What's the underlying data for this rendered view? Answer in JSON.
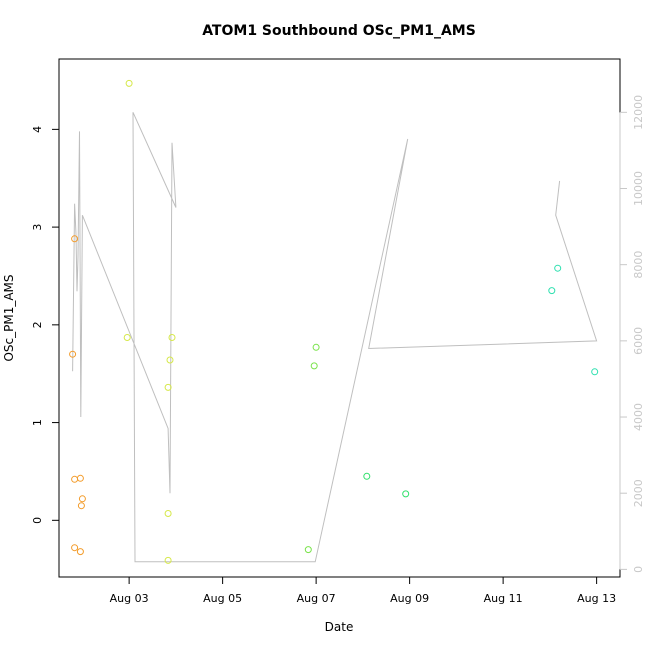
{
  "chart_data": {
    "type": "scatter",
    "title": "ATOM1 Southbound OSc_PM1_AMS",
    "xlabel": "Date",
    "ylabel": "OSc_PM1_AMS",
    "xlim": [
      "2023-08-01T12:00",
      "2023-08-13T12:00"
    ],
    "ylim": [
      -0.58,
      4.72
    ],
    "ylim_right": [
      -200,
      13400
    ],
    "x_ticks": [
      {
        "date": "2023-08-03",
        "label": "Aug 03"
      },
      {
        "date": "2023-08-05",
        "label": "Aug 05"
      },
      {
        "date": "2023-08-07",
        "label": "Aug 07"
      },
      {
        "date": "2023-08-09",
        "label": "Aug 09"
      },
      {
        "date": "2023-08-11",
        "label": "Aug 11"
      },
      {
        "date": "2023-08-13",
        "label": "Aug 13"
      }
    ],
    "y_ticks": [
      "0",
      "1",
      "2",
      "3",
      "4"
    ],
    "y_ticks_right": [
      "0",
      "2000",
      "4000",
      "6000",
      "8000",
      "10000",
      "12000"
    ],
    "grid": false,
    "points": [
      {
        "t": "2023-08-01T20:00",
        "y": 2.88,
        "color": "#f39c2b"
      },
      {
        "t": "2023-08-01T19:00",
        "y": 1.7,
        "color": "#f39c2b"
      },
      {
        "t": "2023-08-01T20:00",
        "y": 0.42,
        "color": "#f39c2b"
      },
      {
        "t": "2023-08-01T23:00",
        "y": 0.43,
        "color": "#f39c2b"
      },
      {
        "t": "2023-08-02T00:00",
        "y": 0.22,
        "color": "#f39c2b"
      },
      {
        "t": "2023-08-01T23:30",
        "y": 0.15,
        "color": "#f39c2b"
      },
      {
        "t": "2023-08-01T20:00",
        "y": -0.28,
        "color": "#f39c2b"
      },
      {
        "t": "2023-08-01T23:00",
        "y": -0.32,
        "color": "#f39c2b"
      },
      {
        "t": "2023-08-03T00:00",
        "y": 4.47,
        "color": "#d6e84a"
      },
      {
        "t": "2023-08-02T23:00",
        "y": 1.87,
        "color": "#d6e84a"
      },
      {
        "t": "2023-08-03T22:00",
        "y": 1.87,
        "color": "#d6e84a"
      },
      {
        "t": "2023-08-03T21:00",
        "y": 1.64,
        "color": "#d6e84a"
      },
      {
        "t": "2023-08-03T20:00",
        "y": 1.36,
        "color": "#d6e84a"
      },
      {
        "t": "2023-08-03T20:00",
        "y": 0.07,
        "color": "#d6e84a"
      },
      {
        "t": "2023-08-03T20:00",
        "y": -0.41,
        "color": "#d6e84a"
      },
      {
        "t": "2023-08-06T20:00",
        "y": -0.3,
        "color": "#79e34a"
      },
      {
        "t": "2023-08-07T00:00",
        "y": 1.77,
        "color": "#79e34a"
      },
      {
        "t": "2023-08-06T23:00",
        "y": 1.58,
        "color": "#79e34a"
      },
      {
        "t": "2023-08-08T02:00",
        "y": 0.45,
        "color": "#2fe06a"
      },
      {
        "t": "2023-08-08T22:00",
        "y": 0.27,
        "color": "#2fe06a"
      },
      {
        "t": "2023-08-12T01:00",
        "y": 2.35,
        "color": "#2fe0b0"
      },
      {
        "t": "2023-08-12T04:00",
        "y": 2.58,
        "color": "#2fe0b0"
      },
      {
        "t": "2023-08-12T23:00",
        "y": 1.52,
        "color": "#2fe0b0"
      }
    ],
    "right_axis_series": {
      "color": "#bfbfbf",
      "points": [
        {
          "t": "2023-08-01T19:00",
          "v": 5200
        },
        {
          "t": "2023-08-01T20:00",
          "v": 9600
        },
        {
          "t": "2023-08-01T20:45",
          "v": 8800
        },
        {
          "t": "2023-08-01T21:15",
          "v": 7300
        },
        {
          "t": "2023-08-01T21:45",
          "v": 8200
        },
        {
          "t": "2023-08-01T22:30",
          "v": 11500
        },
        {
          "t": "2023-08-01T23:10",
          "v": 4000
        },
        {
          "t": "2023-08-02T00:00",
          "v": 9300
        },
        {
          "t": "2023-08-03T20:00",
          "v": 3700
        },
        {
          "t": "2023-08-03T21:00",
          "v": 2000
        },
        {
          "t": "2023-08-03T22:00",
          "v": 11200
        },
        {
          "t": "2023-08-04T00:00",
          "v": 9500
        },
        {
          "t": "2023-08-03T02:00",
          "v": 12000
        },
        {
          "t": "2023-08-03T03:00",
          "v": 200
        },
        {
          "t": "2023-08-06T23:30",
          "v": 200
        },
        {
          "t": "2023-08-08T23:00",
          "v": 11300
        },
        {
          "t": "2023-08-08T03:00",
          "v": 5800
        },
        {
          "t": "2023-08-13T00:00",
          "v": 6000
        },
        {
          "t": "2023-08-12T03:00",
          "v": 9300
        },
        {
          "t": "2023-08-12T05:00",
          "v": 10200
        }
      ]
    }
  }
}
